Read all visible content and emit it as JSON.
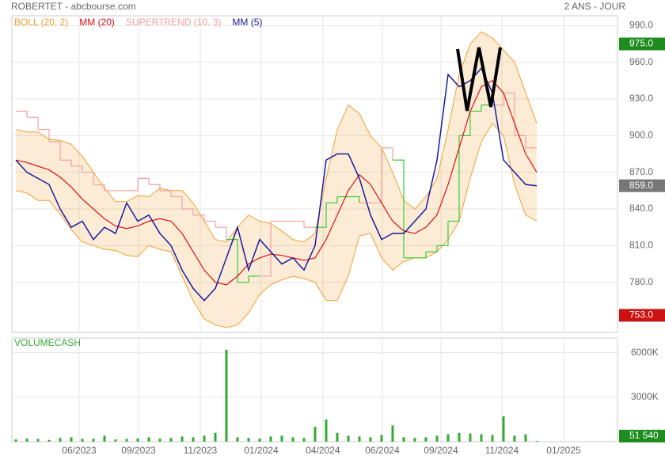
{
  "chart_data": {
    "type": "line",
    "title": "ROBERTET - abcbourse.com",
    "subtitle": "2 ANS - JOUR",
    "xlim": [
      -0.36,
      54.29
    ],
    "xticks": [
      {
        "value": 5.71,
        "label": "06/2023"
      },
      {
        "value": 11.07,
        "label": "09/2023"
      },
      {
        "value": 16.64,
        "label": "11/2023"
      },
      {
        "value": 22.14,
        "label": "01/2024"
      },
      {
        "value": 27.71,
        "label": "04/2024"
      },
      {
        "value": 33.07,
        "label": "06/2024"
      },
      {
        "value": 38.36,
        "label": "09/2024"
      },
      {
        "value": 43.86,
        "label": "11/2024"
      },
      {
        "value": 49.43,
        "label": "01/2025"
      }
    ],
    "ylim": [
      739,
      998
    ],
    "yticks": [
      {
        "value": 780,
        "label": "780.0"
      },
      {
        "value": 810,
        "label": "810.0"
      },
      {
        "value": 840,
        "label": "840.0"
      },
      {
        "value": 870,
        "label": "870.0"
      },
      {
        "value": 900,
        "label": "900.0"
      },
      {
        "value": 930,
        "label": "930.0"
      },
      {
        "value": 960,
        "label": "960.0"
      },
      {
        "value": 990,
        "label": "990.0"
      }
    ],
    "grid": true,
    "series": [
      {
        "name": "BOLL (20, 2)",
        "color": "#f0a030",
        "upper": [
          905,
          903,
          903,
          897,
          896,
          893,
          883,
          870,
          857,
          846,
          846,
          851,
          850,
          857,
          855,
          855,
          845,
          830,
          815,
          813,
          825,
          835,
          830,
          828,
          822,
          815,
          813,
          820,
          865,
          905,
          925,
          918,
          900,
          890,
          870,
          847,
          840,
          850,
          865,
          905,
          950,
          975,
          985,
          980,
          970,
          960,
          935,
          910
        ],
        "lower": [
          855,
          853,
          847,
          847,
          836,
          823,
          813,
          810,
          807,
          806,
          802,
          801,
          810,
          807,
          805,
          785,
          765,
          750,
          745,
          743,
          745,
          755,
          770,
          778,
          782,
          785,
          783,
          780,
          765,
          765,
          785,
          818,
          820,
          800,
          790,
          797,
          800,
          800,
          805,
          815,
          830,
          865,
          895,
          910,
          900,
          860,
          835,
          830
        ]
      },
      {
        "name": "MM (20)",
        "color": "#dd1111",
        "values": [
          880,
          878,
          875,
          872,
          866,
          858,
          848,
          840,
          832,
          826,
          824,
          826,
          830,
          832,
          830,
          820,
          805,
          790,
          780,
          778,
          785,
          795,
          800,
          803,
          802,
          800,
          798,
          800,
          815,
          835,
          855,
          868,
          860,
          845,
          830,
          822,
          820,
          825,
          835,
          860,
          890,
          920,
          940,
          945,
          935,
          910,
          885,
          870
        ]
      },
      {
        "name": "SUPERTREND (10, 3)",
        "color": "#f4a0a0",
        "up_color": "#33cc33",
        "values": [
          920,
          915,
          905,
          895,
          880,
          875,
          870,
          860,
          855,
          855,
          855,
          865,
          860,
          855,
          850,
          840,
          835,
          830,
          825,
          815,
          780,
          785,
          785,
          830,
          830,
          830,
          825,
          825,
          845,
          850,
          850,
          845,
          845,
          890,
          880,
          800,
          800,
          805,
          810,
          830,
          900,
          920,
          925,
          925,
          935,
          900,
          890,
          890
        ]
      },
      {
        "name": "MM (5)",
        "color": "#1a1aa0",
        "values": [
          880,
          870,
          865,
          860,
          840,
          825,
          830,
          815,
          825,
          820,
          845,
          830,
          835,
          820,
          810,
          790,
          775,
          765,
          775,
          800,
          825,
          790,
          815,
          805,
          795,
          800,
          790,
          810,
          880,
          885,
          885,
          865,
          835,
          815,
          820,
          820,
          830,
          840,
          880,
          950,
          940,
          945,
          955,
          935,
          880,
          870,
          860,
          859
        ]
      }
    ],
    "markers": [
      {
        "value": 975,
        "label": "975.0",
        "color": "#1e8c1e"
      },
      {
        "value": 859,
        "label": "859.0",
        "color": "#777777"
      },
      {
        "value": 753,
        "label": "753.0",
        "color": "#cc1111"
      }
    ],
    "volume": {
      "name": "VOLUMECASH",
      "color": "#33aa33",
      "ylim": [
        0,
        7000
      ],
      "yticks": [
        {
          "value": 3000,
          "label": "3000K"
        },
        {
          "value": 6000,
          "label": "6000K"
        }
      ],
      "values": [
        150,
        200,
        180,
        120,
        250,
        300,
        180,
        200,
        400,
        150,
        180,
        220,
        300,
        200,
        250,
        350,
        300,
        400,
        600,
        6200,
        300,
        250,
        200,
        350,
        400,
        300,
        250,
        1000,
        1500,
        600,
        400,
        350,
        300,
        450,
        1100,
        300,
        250,
        300,
        400,
        500,
        600,
        550,
        500,
        450,
        1700,
        400,
        500,
        51.54
      ],
      "marker": {
        "value": 51.54,
        "label": "51 540",
        "color": "#1e8c1e"
      }
    }
  }
}
